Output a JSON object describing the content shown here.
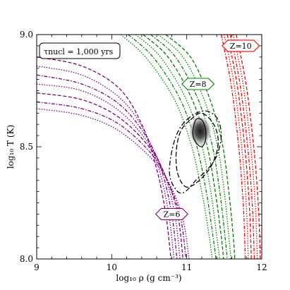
{
  "chart_data": {
    "type": "contour",
    "xlabel": "log₁₀ ρ  (g cm⁻³)",
    "ylabel": "log₁₀ T  (K)",
    "xlim": [
      9,
      12
    ],
    "ylim": [
      8.0,
      9.0
    ],
    "xticks": [
      9,
      10,
      11,
      12
    ],
    "xtick_labels": [
      "9",
      "10",
      "11",
      "12"
    ],
    "yticks": [
      8.0,
      8.5,
      9.0
    ],
    "ytick_labels": [
      "8.0",
      "8.5",
      "9.0"
    ],
    "legend_box": "τnucl = 1,000 yrs",
    "grid": false,
    "colors": {
      "purple": "#800080",
      "green": "#008000",
      "red": "#ff0000",
      "black": "#000000"
    },
    "series": [
      {
        "label": "Z=6",
        "color": "#800080",
        "label_at": {
          "x": 10.8,
          "y": 8.2
        },
        "curves": [
          [
            [
              9.0,
              8.9
            ],
            [
              9.6,
              8.86
            ],
            [
              10.1,
              8.76
            ],
            [
              10.4,
              8.6
            ],
            [
              10.6,
              8.4
            ],
            [
              10.72,
              8.2
            ],
            [
              10.79,
              8.0
            ]
          ],
          [
            [
              9.0,
              8.86
            ],
            [
              9.6,
              8.82
            ],
            [
              10.1,
              8.72
            ],
            [
              10.42,
              8.58
            ],
            [
              10.63,
              8.4
            ],
            [
              10.76,
              8.2
            ],
            [
              10.83,
              8.0
            ]
          ],
          [
            [
              9.0,
              8.82
            ],
            [
              9.6,
              8.78
            ],
            [
              10.1,
              8.69
            ],
            [
              10.45,
              8.55
            ],
            [
              10.66,
              8.4
            ],
            [
              10.8,
              8.2
            ],
            [
              10.87,
              8.0
            ]
          ],
          [
            [
              9.0,
              8.78
            ],
            [
              9.6,
              8.75
            ],
            [
              10.1,
              8.66
            ],
            [
              10.48,
              8.52
            ],
            [
              10.7,
              8.38
            ],
            [
              10.84,
              8.2
            ],
            [
              10.91,
              8.0
            ]
          ],
          [
            [
              9.0,
              8.74
            ],
            [
              9.6,
              8.71
            ],
            [
              10.1,
              8.63
            ],
            [
              10.52,
              8.49
            ],
            [
              10.74,
              8.35
            ],
            [
              10.88,
              8.2
            ],
            [
              10.95,
              8.0
            ]
          ],
          [
            [
              9.0,
              8.7
            ],
            [
              9.6,
              8.67
            ],
            [
              10.1,
              8.6
            ],
            [
              10.55,
              8.46
            ],
            [
              10.78,
              8.32
            ],
            [
              10.92,
              8.18
            ],
            [
              10.99,
              8.0
            ]
          ],
          [
            [
              9.0,
              8.67
            ],
            [
              9.6,
              8.64
            ],
            [
              10.1,
              8.57
            ],
            [
              10.58,
              8.43
            ],
            [
              10.82,
              8.3
            ],
            [
              10.96,
              8.16
            ],
            [
              11.03,
              8.0
            ]
          ]
        ]
      },
      {
        "label": "Z=8",
        "color": "#008000",
        "label_at": {
          "x": 11.15,
          "y": 8.78
        },
        "curves": [
          [
            [
              10.12,
              9.0
            ],
            [
              10.45,
              8.9
            ],
            [
              10.82,
              8.72
            ],
            [
              11.05,
              8.52
            ],
            [
              11.2,
              8.3
            ],
            [
              11.3,
              8.1
            ],
            [
              11.34,
              8.0
            ]
          ],
          [
            [
              10.22,
              9.0
            ],
            [
              10.55,
              8.9
            ],
            [
              10.9,
              8.72
            ],
            [
              11.12,
              8.52
            ],
            [
              11.26,
              8.3
            ],
            [
              11.35,
              8.1
            ],
            [
              11.39,
              8.0
            ]
          ],
          [
            [
              10.32,
              9.0
            ],
            [
              10.65,
              8.9
            ],
            [
              10.98,
              8.72
            ],
            [
              11.19,
              8.52
            ],
            [
              11.32,
              8.3
            ],
            [
              11.4,
              8.1
            ],
            [
              11.44,
              8.0
            ]
          ],
          [
            [
              10.42,
              9.0
            ],
            [
              10.75,
              8.9
            ],
            [
              11.06,
              8.72
            ],
            [
              11.26,
              8.52
            ],
            [
              11.38,
              8.3
            ],
            [
              11.46,
              8.1
            ],
            [
              11.49,
              8.0
            ]
          ],
          [
            [
              10.52,
              9.0
            ],
            [
              10.85,
              8.9
            ],
            [
              11.14,
              8.72
            ],
            [
              11.33,
              8.52
            ],
            [
              11.44,
              8.3
            ],
            [
              11.51,
              8.1
            ],
            [
              11.54,
              8.0
            ]
          ],
          [
            [
              10.62,
              9.0
            ],
            [
              10.95,
              8.9
            ],
            [
              11.22,
              8.72
            ],
            [
              11.4,
              8.52
            ],
            [
              11.5,
              8.3
            ],
            [
              11.56,
              8.1
            ],
            [
              11.59,
              8.0
            ]
          ],
          [
            [
              10.72,
              9.0
            ],
            [
              11.05,
              8.9
            ],
            [
              11.3,
              8.72
            ],
            [
              11.47,
              8.52
            ],
            [
              11.56,
              8.3
            ],
            [
              11.62,
              8.1
            ],
            [
              11.64,
              8.0
            ]
          ]
        ]
      },
      {
        "label": "Z=10",
        "color": "#ff0000",
        "label_at": {
          "x": 11.72,
          "y": 8.95
        },
        "curves": [
          [
            [
              11.46,
              9.0
            ],
            [
              11.58,
              8.8
            ],
            [
              11.66,
              8.6
            ],
            [
              11.72,
              8.4
            ],
            [
              11.76,
              8.2
            ],
            [
              11.78,
              8.0
            ]
          ],
          [
            [
              11.5,
              9.0
            ],
            [
              11.62,
              8.8
            ],
            [
              11.7,
              8.6
            ],
            [
              11.76,
              8.4
            ],
            [
              11.8,
              8.2
            ],
            [
              11.82,
              8.0
            ]
          ],
          [
            [
              11.54,
              9.0
            ],
            [
              11.66,
              8.8
            ],
            [
              11.74,
              8.6
            ],
            [
              11.8,
              8.4
            ],
            [
              11.84,
              8.2
            ],
            [
              11.86,
              8.0
            ]
          ],
          [
            [
              11.58,
              9.0
            ],
            [
              11.7,
              8.8
            ],
            [
              11.78,
              8.6
            ],
            [
              11.84,
              8.4
            ],
            [
              11.88,
              8.2
            ],
            [
              11.9,
              8.0
            ]
          ],
          [
            [
              11.62,
              9.0
            ],
            [
              11.74,
              8.8
            ],
            [
              11.82,
              8.6
            ],
            [
              11.88,
              8.4
            ],
            [
              11.92,
              8.2
            ],
            [
              11.94,
              8.0
            ]
          ],
          [
            [
              11.66,
              9.0
            ],
            [
              11.78,
              8.8
            ],
            [
              11.86,
              8.6
            ],
            [
              11.92,
              8.4
            ],
            [
              11.96,
              8.2
            ],
            [
              11.98,
              8.0
            ]
          ]
        ]
      }
    ],
    "contours": [
      {
        "style": "dashed",
        "points": [
          [
            11.05,
            8.62
          ],
          [
            11.2,
            8.65
          ],
          [
            11.36,
            8.6
          ],
          [
            11.42,
            8.52
          ],
          [
            11.35,
            8.43
          ],
          [
            11.2,
            8.36
          ],
          [
            11.0,
            8.32
          ],
          [
            10.88,
            8.38
          ],
          [
            10.86,
            8.48
          ],
          [
            10.92,
            8.57
          ]
        ]
      },
      {
        "style": "dashdot",
        "points": [
          [
            11.0,
            8.62
          ],
          [
            11.22,
            8.66
          ],
          [
            11.4,
            8.63
          ],
          [
            11.46,
            8.55
          ],
          [
            11.4,
            8.46
          ],
          [
            11.28,
            8.4
          ],
          [
            11.12,
            8.35
          ],
          [
            10.98,
            8.3
          ],
          [
            10.88,
            8.3
          ],
          [
            10.78,
            8.36
          ],
          [
            10.78,
            8.44
          ],
          [
            10.86,
            8.55
          ]
        ]
      },
      {
        "style": "solid",
        "points": [
          [
            11.12,
            8.62
          ],
          [
            11.2,
            8.62
          ],
          [
            11.25,
            8.58
          ],
          [
            11.25,
            8.53
          ],
          [
            11.2,
            8.5
          ],
          [
            11.12,
            8.52
          ],
          [
            11.08,
            8.56
          ]
        ]
      }
    ],
    "peak": {
      "x": 11.18,
      "y": 8.57
    }
  }
}
